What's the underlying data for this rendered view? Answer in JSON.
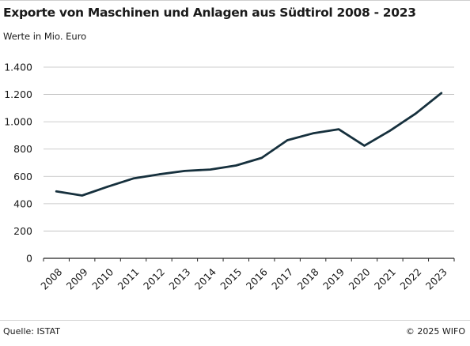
{
  "chart_data": {
    "type": "line",
    "title": "Exporte von Maschinen und Anlagen aus Südtirol 2008 - 2023",
    "subtitle": "Werte in Mio. Euro",
    "xlabel": "",
    "ylabel": "",
    "ylim": [
      0,
      1400
    ],
    "y_ticks": [
      0,
      200,
      400,
      600,
      800,
      1000,
      1200,
      1400
    ],
    "y_tick_labels": [
      "0",
      "200",
      "400",
      "600",
      "800",
      "1.000",
      "1.200",
      "1.400"
    ],
    "grid": true,
    "categories": [
      "2008",
      "2009",
      "2010",
      "2011",
      "2012",
      "2013",
      "2014",
      "2015",
      "2016",
      "2017",
      "2018",
      "2019",
      "2020",
      "2021",
      "2022",
      "2023"
    ],
    "series": [
      {
        "color": "#16303d",
        "values": [
          490,
          460,
          525,
          585,
          615,
          640,
          650,
          680,
          735,
          865,
          915,
          945,
          825,
          935,
          1060,
          1210
        ]
      }
    ]
  },
  "footer": {
    "source": "Quelle: ISTAT",
    "copyright": "© 2025 WIFO"
  }
}
